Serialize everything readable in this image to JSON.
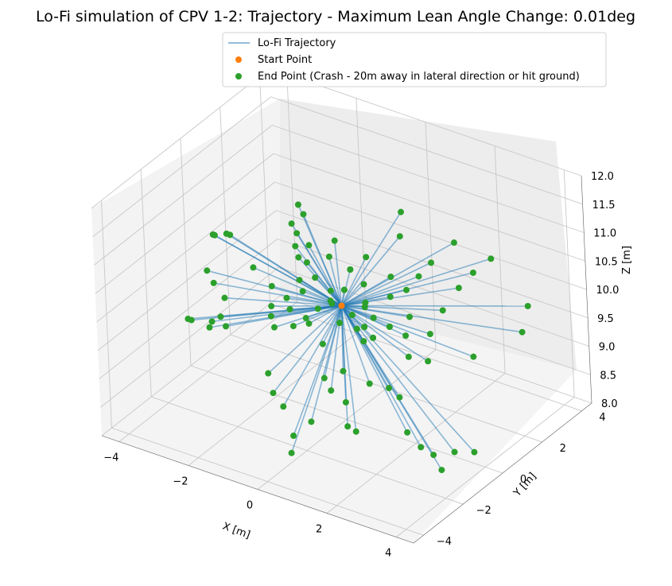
{
  "chart_data": {
    "type": "line3d",
    "title": "Lo-Fi simulation of CPV 1-2: Trajectory - Maximum Lean Angle Change: 0.01deg",
    "xlabel": "X [m]",
    "ylabel": "Y [m]",
    "zlabel": "Z [m]",
    "x_ticks": [
      "−4",
      "−2",
      "0",
      "2",
      "4"
    ],
    "y_ticks": [
      "−4",
      "−2",
      "0",
      "2",
      "4"
    ],
    "z_ticks": [
      "8.0",
      "8.5",
      "9.0",
      "9.5",
      "10.0",
      "10.5",
      "11.0",
      "11.5",
      "12.0"
    ],
    "xlim": [
      -4.5,
      4.5
    ],
    "ylim": [
      -4.5,
      4.5
    ],
    "zlim": [
      8.0,
      12.0
    ],
    "grid": true,
    "legend_position": "top-center",
    "legend": [
      {
        "label": "Lo-Fi Trajectory",
        "marker": "line",
        "color": "#1f77b4"
      },
      {
        "label": "Start Point",
        "marker": "dot",
        "color": "#ff7f0e"
      },
      {
        "label": "End Point (Crash - 20m away in lateral direction or hit ground)",
        "marker": "dot",
        "color": "#2ca02c"
      }
    ],
    "start_point": [
      0.0,
      0.0,
      10.0
    ],
    "end_points": [
      [
        -4.4,
        1.2,
        10.0
      ],
      [
        -4.35,
        1.2,
        10.0
      ],
      [
        -3.7,
        0.7,
        10.3
      ],
      [
        -3.6,
        0.7,
        10.3
      ],
      [
        -3.9,
        0.0,
        9.8
      ],
      [
        -3.6,
        -0.2,
        9.7
      ],
      [
        -3.8,
        -1.2,
        9.3
      ],
      [
        -3.7,
        -1.2,
        9.3
      ],
      [
        -3.3,
        -0.2,
        9.5
      ],
      [
        -3.2,
        -0.6,
        9.3
      ],
      [
        -3.4,
        -0.7,
        9.2
      ],
      [
        -3.3,
        -1.0,
        9.2
      ],
      [
        -3.0,
        -0.7,
        9.2
      ],
      [
        -2.9,
        0.6,
        9.9
      ],
      [
        -2.2,
        1.4,
        10.6
      ],
      [
        -2.0,
        1.3,
        10.5
      ],
      [
        -1.9,
        1.5,
        10.8
      ],
      [
        -2.1,
        1.6,
        10.9
      ],
      [
        -1.6,
        1.2,
        10.4
      ],
      [
        -1.5,
        0.9,
        10.2
      ],
      [
        -2.0,
        1.2,
        10.3
      ],
      [
        -1.8,
        1.0,
        10.2
      ],
      [
        -1.5,
        0.5,
        10.0
      ],
      [
        -1.3,
        0.3,
        9.9
      ],
      [
        -1.6,
        0.0,
        9.8
      ],
      [
        -1.4,
        -0.2,
        9.7
      ],
      [
        -1.1,
        0.6,
        10.1
      ],
      [
        -0.9,
        1.3,
        10.6
      ],
      [
        -0.9,
        1.0,
        10.4
      ],
      [
        -2.2,
        0.3,
        9.8
      ],
      [
        -2.0,
        -0.1,
        9.6
      ],
      [
        -1.7,
        -0.5,
        9.4
      ],
      [
        -1.9,
        -0.3,
        9.5
      ],
      [
        -1.2,
        -0.4,
        9.5
      ],
      [
        -1.0,
        -0.1,
        9.6
      ],
      [
        -0.8,
        -0.3,
        9.6
      ],
      [
        -0.7,
        0.0,
        9.8
      ],
      [
        -0.5,
        0.3,
        9.9
      ],
      [
        -0.6,
        0.5,
        10.0
      ],
      [
        -0.4,
        0.2,
        9.9
      ],
      [
        -1.4,
        -1.4,
        8.9
      ],
      [
        -1.1,
        -1.7,
        8.7
      ],
      [
        -0.7,
        -1.9,
        8.6
      ],
      [
        -0.2,
        -2.3,
        8.3
      ],
      [
        -0.1,
        -2.6,
        8.1
      ],
      [
        0.1,
        -1.9,
        8.5
      ],
      [
        0.3,
        -1.2,
        8.9
      ],
      [
        0.0,
        -1.0,
        9.0
      ],
      [
        -0.3,
        -0.5,
        9.4
      ],
      [
        0.5,
        -0.9,
        9.2
      ],
      [
        0.9,
        -1.5,
        8.9
      ],
      [
        1.4,
        -1.9,
        8.6
      ],
      [
        1.1,
        -1.8,
        8.6
      ],
      [
        1.2,
        -0.8,
        9.1
      ],
      [
        1.7,
        -0.7,
        9.1
      ],
      [
        2.0,
        -0.7,
        9.0
      ],
      [
        2.6,
        -1.4,
        8.7
      ],
      [
        3.1,
        -1.6,
        8.6
      ],
      [
        3.4,
        -1.5,
        8.5
      ],
      [
        3.8,
        -1.8,
        8.4
      ],
      [
        3.9,
        -1.3,
        8.6
      ],
      [
        4.3,
        -1.0,
        8.6
      ],
      [
        4.3,
        1.6,
        10.0
      ],
      [
        4.2,
        2.1,
        10.3
      ],
      [
        3.5,
        0.5,
        9.7
      ],
      [
        2.4,
        0.1,
        9.5
      ],
      [
        1.9,
        0.0,
        9.5
      ],
      [
        1.6,
        0.4,
        9.7
      ],
      [
        1.5,
        0.8,
        9.9
      ],
      [
        2.2,
        0.6,
        9.8
      ],
      [
        2.3,
        1.1,
        10.1
      ],
      [
        2.5,
        1.6,
        10.4
      ],
      [
        2.7,
        2.0,
        10.6
      ],
      [
        3.0,
        2.4,
        10.8
      ],
      [
        2.0,
        2.3,
        10.9
      ],
      [
        1.6,
        1.8,
        10.6
      ],
      [
        1.4,
        1.5,
        10.4
      ],
      [
        1.2,
        1.2,
        10.2
      ],
      [
        0.9,
        0.9,
        10.1
      ],
      [
        0.7,
        1.3,
        10.3
      ],
      [
        0.6,
        2.0,
        10.8
      ],
      [
        0.3,
        2.6,
        11.0
      ],
      [
        0.0,
        1.3,
        10.5
      ],
      [
        0.2,
        0.8,
        10.2
      ],
      [
        0.5,
        0.3,
        10.0
      ],
      [
        0.8,
        0.2,
        9.9
      ],
      [
        1.0,
        -0.2,
        9.7
      ],
      [
        0.3,
        0.0,
        9.9
      ],
      [
        0.6,
        -0.3,
        9.8
      ],
      [
        0.9,
        -0.5,
        9.7
      ],
      [
        -0.2,
        0.5,
        10.1
      ],
      [
        -0.3,
        1.0,
        10.3
      ],
      [
        0.4,
        0.5,
        10.0
      ],
      [
        0.7,
        -0.1,
        9.8
      ],
      [
        1.2,
        0.3,
        9.8
      ],
      [
        0.1,
        -0.3,
        9.8
      ]
    ]
  }
}
